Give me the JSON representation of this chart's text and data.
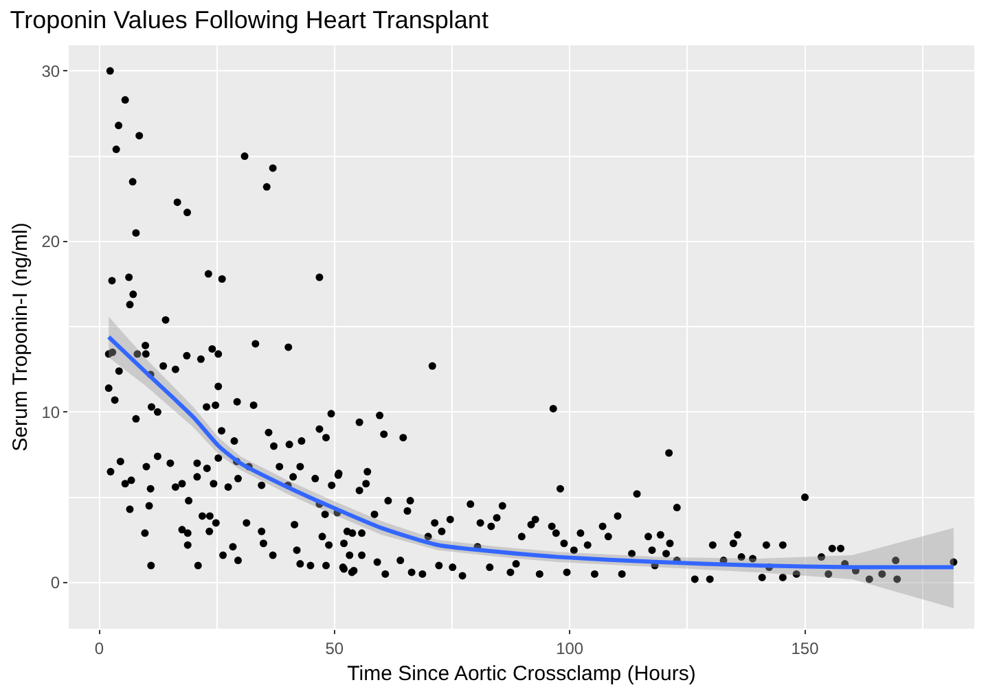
{
  "chart_data": {
    "type": "scatter",
    "title": "Troponin Values Following Heart Transplant",
    "xlabel": "Time Since Aortic Crossclamp (Hours)",
    "ylabel": "Serum Troponin-I (ng/ml)",
    "xlim": [
      -6.5,
      186
    ],
    "ylim": [
      -2.7,
      31.5
    ],
    "xticks": [
      0,
      50,
      100,
      150
    ],
    "yticks": [
      0,
      10,
      20,
      30
    ],
    "grid": true,
    "series": [
      {
        "marker": "circle",
        "color": "#000000",
        "x": [
          2.3,
          5.5,
          4.1,
          3.6,
          8.5,
          7.1,
          7.8,
          2.7,
          6.3,
          7.2,
          6.5,
          16.6,
          18.7,
          30.9,
          35.6,
          36.9,
          23.2,
          26.1,
          46.8,
          14.1,
          2.0,
          2.8,
          2.0,
          4.2,
          9.8,
          9.9,
          8.1,
          18.6,
          21.6,
          24.0,
          25.3,
          33.2,
          40.2,
          7.8,
          3.3,
          10.9,
          13.6,
          16.2,
          11.1,
          12.4,
          22.8,
          24.7,
          25.3,
          29.3,
          32.8,
          49.3,
          2.4,
          4.5,
          5.5,
          6.8,
          6.5,
          9.7,
          10.0,
          12.4,
          15.1,
          10.9,
          10.6,
          11.0,
          16.2,
          17.6,
          19.0,
          17.6,
          18.8,
          20.8,
          20.8,
          22.9,
          24.3,
          21.9,
          23.5,
          24.8,
          23.4,
          18.8,
          21.0,
          26.3,
          25.3,
          26.0,
          28.7,
          29.2,
          27.4,
          29.5,
          31.3,
          28.4,
          29.5,
          31.8,
          34.5,
          34.9,
          36.9,
          34.5,
          36.0,
          37.1,
          38.3,
          40.1,
          41.2,
          40.4,
          43.0,
          42.7,
          45.9,
          46.8,
          48.2,
          41.5,
          42.0,
          42.7,
          44.9,
          46.8,
          48.0,
          47.4,
          48.2,
          50.8,
          49.4,
          50.6,
          52.7,
          52.0,
          53.7,
          48.8,
          70.8,
          55.3,
          59.6,
          60.5,
          64.6,
          96.5,
          98.0,
          50.9,
          57.0,
          56.7,
          55.3,
          61.4,
          66.1,
          65.5,
          58.5,
          53.8,
          55.8,
          52.0,
          53.2,
          55.8,
          51.8,
          54.1,
          59.1,
          60.8,
          64.0,
          66.4,
          68.7,
          69.9,
          71.3,
          72.8,
          74.6,
          72.2,
          75.1,
          77.2,
          78.9,
          81.0,
          80.4,
          83.3,
          84.5,
          85.7,
          83.0,
          87.4,
          88.6,
          89.8,
          91.8,
          92.7,
          93.6,
          96.2,
          97.1,
          98.8,
          100.9,
          102.3,
          103.8,
          99.4,
          105.3,
          107.0,
          108.2,
          110.2,
          114.3,
          116.7,
          113.2,
          118.1,
          111.1,
          121.1,
          122.8,
          150.0,
          119.3,
          121.3,
          117.5,
          120.5,
          122.8,
          126.6,
          129.8,
          130.4,
          132.7,
          134.8,
          135.7,
          136.5,
          138.9,
          140.9,
          141.8,
          145.3,
          145.3,
          148.2,
          153.5,
          155.8,
          157.6,
          155.0,
          158.5,
          160.8,
          163.7,
          166.4,
          169.3,
          169.6,
          181.6,
          142.4
        ],
        "values": [
          30.0,
          28.3,
          26.8,
          25.4,
          26.2,
          23.5,
          20.5,
          17.7,
          17.9,
          16.9,
          16.3,
          22.3,
          21.7,
          25.0,
          23.2,
          24.3,
          18.1,
          17.8,
          17.9,
          15.4,
          13.4,
          13.5,
          11.4,
          12.4,
          13.9,
          13.4,
          13.4,
          13.3,
          13.1,
          13.7,
          13.4,
          14.0,
          13.8,
          9.6,
          10.7,
          12.2,
          12.7,
          12.5,
          10.3,
          10.0,
          10.3,
          10.4,
          11.5,
          10.6,
          10.4,
          9.9,
          6.5,
          7.1,
          5.8,
          6.0,
          4.3,
          2.9,
          6.8,
          7.4,
          7.0,
          5.5,
          4.5,
          1.0,
          5.6,
          5.8,
          4.8,
          3.1,
          2.9,
          7.0,
          6.2,
          6.7,
          5.8,
          3.9,
          3.9,
          3.5,
          3.0,
          2.2,
          1.0,
          1.6,
          7.3,
          8.9,
          8.3,
          7.1,
          5.6,
          6.1,
          3.5,
          2.1,
          1.3,
          6.8,
          3.0,
          2.3,
          1.6,
          5.7,
          8.8,
          8.0,
          6.8,
          5.7,
          6.2,
          8.1,
          8.3,
          6.8,
          6.1,
          9.0,
          8.5,
          3.4,
          1.9,
          1.1,
          1.0,
          4.6,
          4.0,
          2.7,
          1.0,
          6.3,
          5.7,
          4.1,
          3.0,
          0.8,
          0.6,
          2.2,
          12.7,
          9.4,
          9.8,
          8.7,
          8.5,
          10.2,
          5.5,
          6.4,
          6.5,
          5.8,
          5.4,
          4.8,
          4.8,
          4.2,
          4.0,
          2.9,
          2.9,
          2.3,
          1.6,
          1.6,
          0.9,
          0.7,
          1.2,
          0.5,
          1.3,
          0.6,
          0.5,
          2.7,
          3.5,
          3.0,
          3.7,
          1.0,
          0.9,
          0.4,
          4.6,
          3.5,
          2.1,
          3.3,
          3.8,
          4.5,
          0.9,
          0.6,
          1.1,
          2.7,
          3.4,
          3.7,
          0.5,
          3.3,
          2.9,
          2.3,
          1.9,
          2.9,
          2.2,
          0.6,
          0.5,
          3.3,
          2.7,
          3.9,
          5.2,
          2.7,
          1.7,
          1.0,
          0.5,
          7.6,
          4.4,
          5.0,
          2.8,
          2.3,
          1.9,
          1.7,
          1.3,
          0.2,
          0.2,
          2.2,
          1.3,
          2.3,
          2.8,
          1.5,
          1.4,
          0.3,
          2.2,
          2.2,
          0.3,
          0.5,
          1.5,
          2.0,
          2.0,
          0.5,
          1.1,
          0.7,
          0.2,
          0.5,
          1.3,
          0.2,
          1.2,
          0.9
        ]
      },
      {
        "type": "line",
        "marker": "none",
        "color": "#3366ff",
        "x": [
          2,
          10,
          20,
          25.4,
          30,
          40,
          48.8,
          60,
          72,
          85,
          97.6,
          119,
          140,
          160,
          181.6
        ],
        "values": [
          14.4,
          12.3,
          9.7,
          8.0,
          7.0,
          5.6,
          4.5,
          3.2,
          2.2,
          1.8,
          1.5,
          1.2,
          1.0,
          0.9,
          0.9
        ],
        "lower": [
          13.2,
          11.5,
          9.1,
          7.5,
          6.6,
          5.2,
          4.1,
          2.8,
          1.9,
          1.5,
          1.2,
          0.9,
          0.6,
          0.2,
          -1.5
        ],
        "upper": [
          15.6,
          13.1,
          10.3,
          8.5,
          7.4,
          6.0,
          4.9,
          3.6,
          2.5,
          2.1,
          1.8,
          1.5,
          1.4,
          1.6,
          3.2
        ]
      }
    ]
  }
}
